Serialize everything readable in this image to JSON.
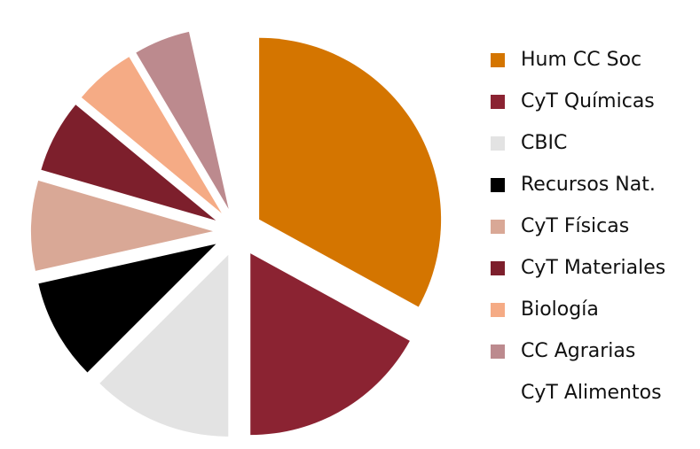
{
  "chart_data": {
    "type": "pie",
    "categories": [
      "Hum CC Soc",
      "CyT Químicas",
      "CBIC",
      "Recursos Nat.",
      "CyT Físicas",
      "CyT Materiales",
      "Biología",
      "CC Agrarias",
      "CyT Alimentos"
    ],
    "values": [
      33,
      17,
      12.5,
      9,
      8,
      6.5,
      5.5,
      5,
      3.5
    ],
    "colors": [
      "#d47500",
      "#8b2332",
      "#e3e3e3",
      "#000000",
      "#d9a896",
      "#7d1f2c",
      "#f5ab85",
      "#bc8a8e",
      "#ffffff"
    ],
    "legend": "right"
  }
}
